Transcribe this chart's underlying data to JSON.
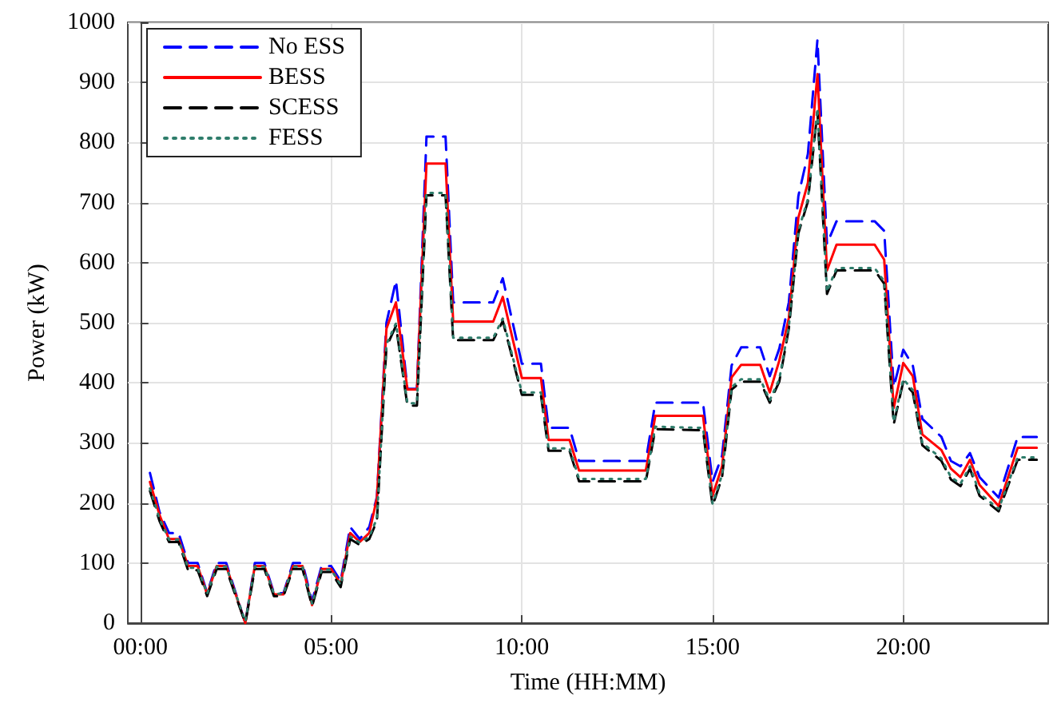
{
  "chart_data": {
    "type": "line",
    "xlabel": "Time (HH:MM)",
    "ylabel": "Power (kW)",
    "x": [
      0.25,
      0.5,
      0.75,
      1.0,
      1.25,
      1.5,
      1.75,
      2.0,
      2.25,
      2.75,
      3.0,
      3.25,
      3.5,
      3.75,
      4.0,
      4.25,
      4.5,
      4.75,
      5.0,
      5.25,
      5.5,
      5.75,
      6.0,
      6.2,
      6.45,
      6.7,
      7.0,
      7.25,
      7.5,
      8.0,
      8.2,
      9.25,
      9.5,
      10.0,
      10.5,
      10.7,
      11.25,
      11.5,
      13.25,
      13.5,
      14.75,
      15.0,
      15.25,
      15.5,
      15.75,
      16.25,
      16.5,
      16.75,
      17.0,
      17.25,
      17.5,
      17.75,
      18.0,
      18.25,
      19.25,
      19.5,
      19.75,
      20.0,
      20.25,
      20.5,
      21.0,
      21.25,
      21.5,
      21.75,
      22.0,
      22.5,
      23.0,
      23.5
    ],
    "series": [
      {
        "name": "No ESS",
        "color": "#0000ff",
        "line_style": "dashed",
        "values": [
          250,
          185,
          150,
          150,
          100,
          100,
          50,
          100,
          100,
          0,
          100,
          100,
          50,
          50,
          100,
          100,
          36,
          95,
          95,
          70,
          160,
          140,
          160,
          210,
          500,
          570,
          390,
          390,
          810,
          810,
          534,
          534,
          574,
          432,
          432,
          325,
          325,
          270,
          270,
          367,
          367,
          235,
          279,
          429,
          459,
          459,
          411,
          457,
          534,
          711,
          781,
          971,
          631,
          669,
          669,
          653,
          393,
          455,
          429,
          340,
          310,
          270,
          261,
          283,
          243,
          209,
          310,
          310
        ]
      },
      {
        "name": "BESS",
        "color": "#ff0000",
        "line_style": "solid",
        "values": [
          235,
          180,
          140,
          140,
          95,
          95,
          48,
          95,
          95,
          0,
          95,
          95,
          48,
          48,
          95,
          95,
          30,
          90,
          90,
          65,
          150,
          135,
          150,
          208,
          490,
          534,
          389,
          389,
          765,
          765,
          502,
          502,
          543,
          408,
          408,
          305,
          305,
          254,
          254,
          345,
          345,
          212,
          261,
          409,
          430,
          430,
          384,
          437,
          508,
          675,
          733,
          914,
          587,
          630,
          630,
          605,
          358,
          433,
          411,
          314,
          288,
          257,
          243,
          272,
          230,
          195,
          292,
          292
        ]
      },
      {
        "name": "SCESS",
        "color": "#000000",
        "line_style": "dashed",
        "values": [
          220,
          170,
          135,
          135,
          88,
          88,
          45,
          90,
          90,
          0,
          90,
          90,
          45,
          45,
          90,
          90,
          28,
          85,
          85,
          60,
          140,
          130,
          140,
          170,
          460,
          495,
          362,
          362,
          712,
          712,
          471,
          471,
          503,
          380,
          380,
          287,
          287,
          236,
          236,
          323,
          321,
          195,
          243,
          389,
          402,
          402,
          367,
          402,
          490,
          649,
          702,
          852,
          548,
          587,
          587,
          565,
          331,
          402,
          384,
          296,
          270,
          239,
          228,
          257,
          212,
          186,
          272,
          272
        ]
      },
      {
        "name": "FESS",
        "color": "#2e7d6b",
        "line_style": "dotted",
        "values": [
          224,
          174,
          139,
          139,
          92,
          92,
          49,
          94,
          94,
          3,
          94,
          94,
          49,
          49,
          94,
          94,
          32,
          89,
          89,
          64,
          144,
          134,
          144,
          174,
          464,
          499,
          366,
          366,
          716,
          716,
          475,
          475,
          507,
          384,
          384,
          291,
          291,
          240,
          240,
          327,
          325,
          199,
          247,
          393,
          406,
          406,
          371,
          406,
          494,
          653,
          706,
          856,
          552,
          591,
          591,
          569,
          335,
          406,
          388,
          300,
          274,
          243,
          232,
          261,
          216,
          190,
          276,
          276
        ]
      }
    ],
    "xlim": [
      -0.33,
      23.8
    ],
    "xticks": [
      {
        "value": 0,
        "label": "00:00"
      },
      {
        "value": 5,
        "label": "05:00"
      },
      {
        "value": 10,
        "label": "10:00"
      },
      {
        "value": 15,
        "label": "15:00"
      },
      {
        "value": 20,
        "label": "20:00"
      }
    ],
    "ylim": [
      0,
      1000
    ],
    "yticks": [
      0,
      100,
      200,
      300,
      400,
      500,
      600,
      700,
      800,
      900,
      1000
    ],
    "grid": true,
    "legend": "top left",
    "marker": "none"
  }
}
